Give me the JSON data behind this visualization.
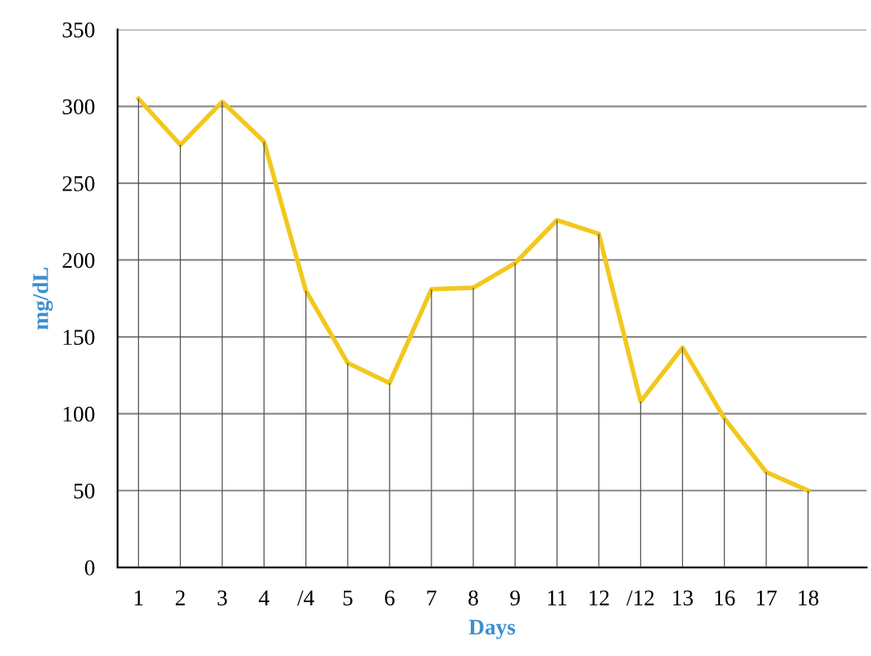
{
  "chart_data": {
    "type": "line",
    "xlabel": "Days",
    "ylabel": "mg/dL",
    "categories": [
      "1",
      "2",
      "3",
      "4",
      "/4",
      "5",
      "6",
      "7",
      "8",
      "9",
      "11",
      "12",
      "/12",
      "13",
      "16",
      "17",
      "18"
    ],
    "series": [
      {
        "type": "bar",
        "color": "#555555",
        "values": [
          305,
          275,
          303,
          277,
          180,
          133,
          120,
          181,
          182,
          198,
          226,
          217,
          108,
          143,
          97,
          62,
          50
        ]
      },
      {
        "color": "#f2c81e",
        "values": [
          305,
          275,
          303,
          277,
          180,
          133,
          120,
          181,
          182,
          198,
          226,
          217,
          108,
          143,
          97,
          62,
          50
        ]
      }
    ],
    "ylim": [
      0,
      350
    ],
    "yticks": [
      0,
      50,
      100,
      150,
      200,
      250,
      300,
      350
    ],
    "grid": "y",
    "marker": "none",
    "line_style": "solid"
  }
}
